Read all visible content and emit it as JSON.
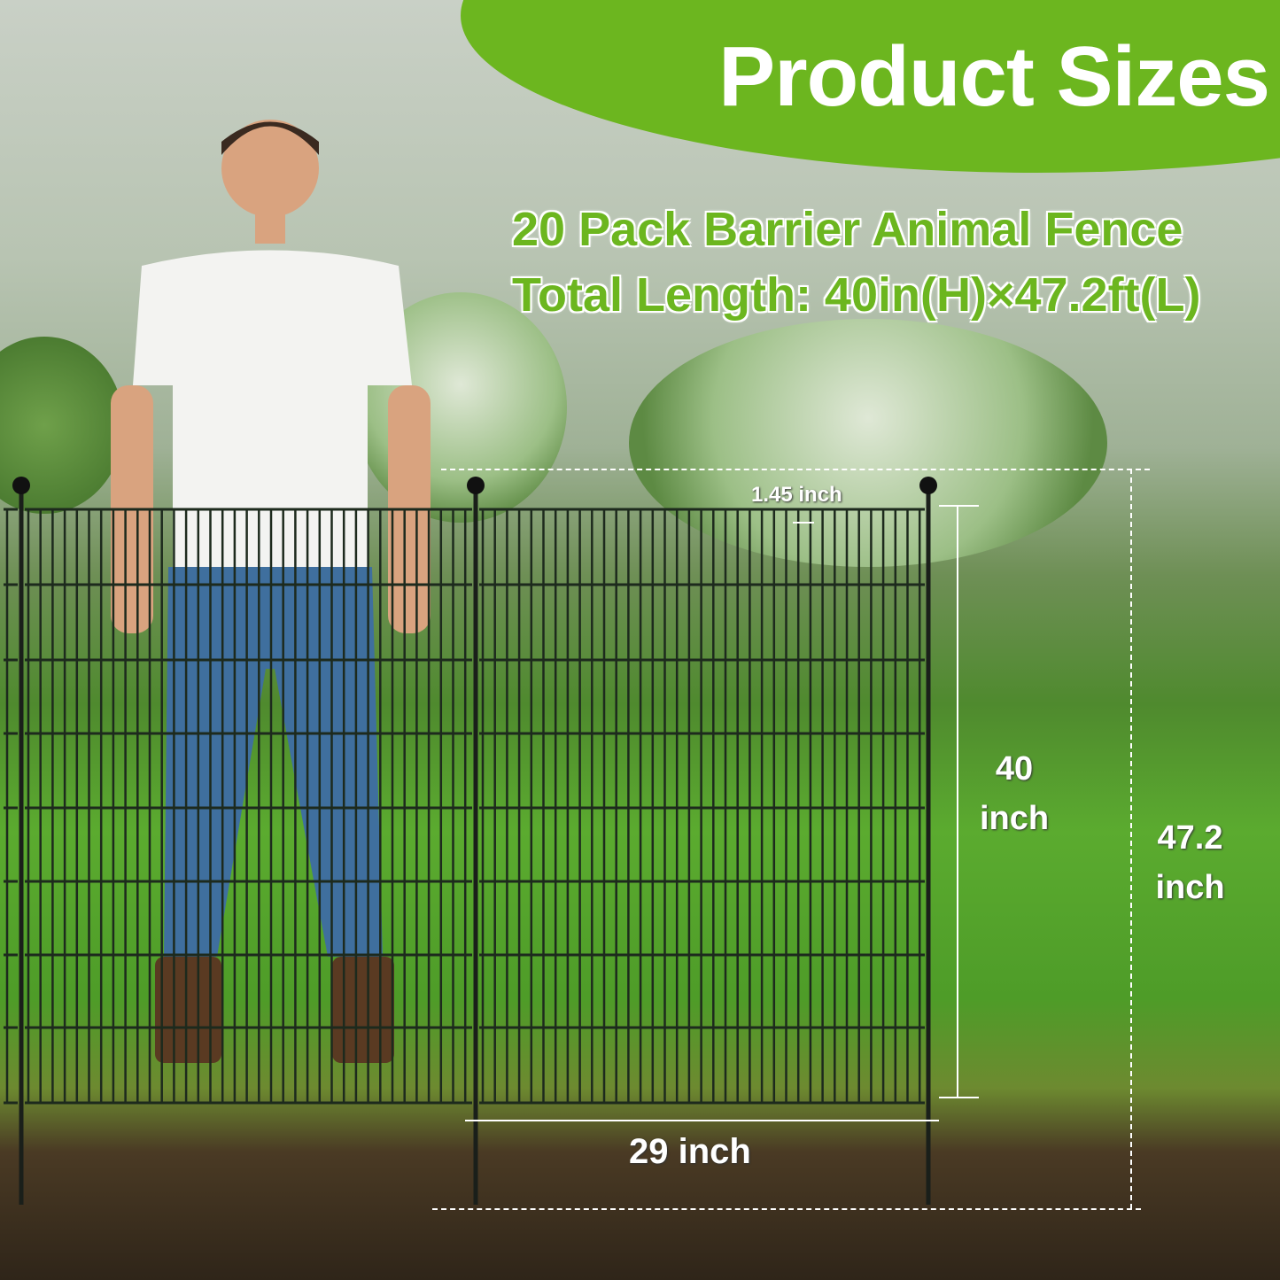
{
  "banner": {
    "title": "Product Sizes",
    "color": "#6cb61f"
  },
  "headline": {
    "line1": "20 Pack Barrier Animal Fence",
    "line2": "Total Length: 40in(H)×47.2ft(L)"
  },
  "dimensions": {
    "spacing": "1.45 inch",
    "panel_height_value": "40",
    "panel_height_unit": "inch",
    "total_height_value": "47.2",
    "total_height_unit": "inch",
    "panel_width": "29 inch"
  }
}
